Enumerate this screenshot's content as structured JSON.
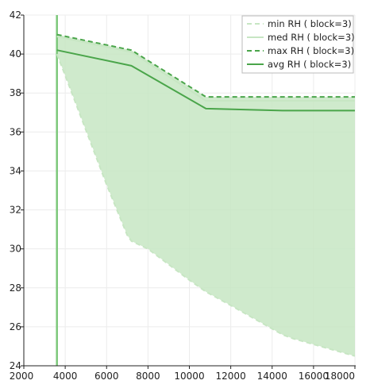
{
  "chart_data": {
    "type": "line",
    "title": "",
    "xlabel": "",
    "ylabel": "",
    "xlim": [
      2000,
      18000
    ],
    "ylim": [
      24,
      42
    ],
    "x_ticks": [
      2000,
      4000,
      6000,
      8000,
      10000,
      12000,
      14000,
      16000,
      18000
    ],
    "y_ticks": [
      24,
      26,
      28,
      30,
      32,
      34,
      36,
      38,
      40,
      42
    ],
    "grid": true,
    "legend_position": "top-right",
    "vertical_marker_x": 3600,
    "band": {
      "lower": "min RH ( block=3)",
      "upper": "max RH ( block=3)",
      "color": "#9fd49a"
    },
    "series": [
      {
        "name": "min RH ( block=3)",
        "style": "dashed",
        "color": "#c7e6c3",
        "x": [
          3600,
          4000,
          5000,
          6000,
          7000,
          7200,
          8000,
          9000,
          10000,
          10800,
          12000,
          13000,
          14000,
          14500,
          15000,
          16000,
          17000,
          18000
        ],
        "y": [
          40.0,
          38.9,
          36.1,
          33.3,
          30.7,
          30.4,
          30.0,
          29.2,
          28.4,
          27.8,
          27.1,
          26.5,
          25.9,
          25.6,
          25.4,
          25.1,
          24.8,
          24.5
        ]
      },
      {
        "name": "med RH ( block=3)",
        "style": "solid",
        "color": "#c7e6c3",
        "x": [
          3600,
          7200,
          10800,
          14500,
          18000
        ],
        "y": [
          40.9,
          40.1,
          37.6,
          37.6,
          37.6
        ]
      },
      {
        "name": "max RH ( block=3)",
        "style": "dashed",
        "color": "#4aa54a",
        "x": [
          3600,
          7200,
          10800,
          14500,
          18000
        ],
        "y": [
          41.0,
          40.2,
          37.8,
          37.8,
          37.8
        ]
      },
      {
        "name": "avg RH ( block=3)",
        "style": "solid",
        "color": "#4aa54a",
        "x": [
          3600,
          7200,
          10800,
          14500,
          18000
        ],
        "y": [
          40.2,
          39.4,
          37.2,
          37.1,
          37.1
        ]
      }
    ]
  }
}
